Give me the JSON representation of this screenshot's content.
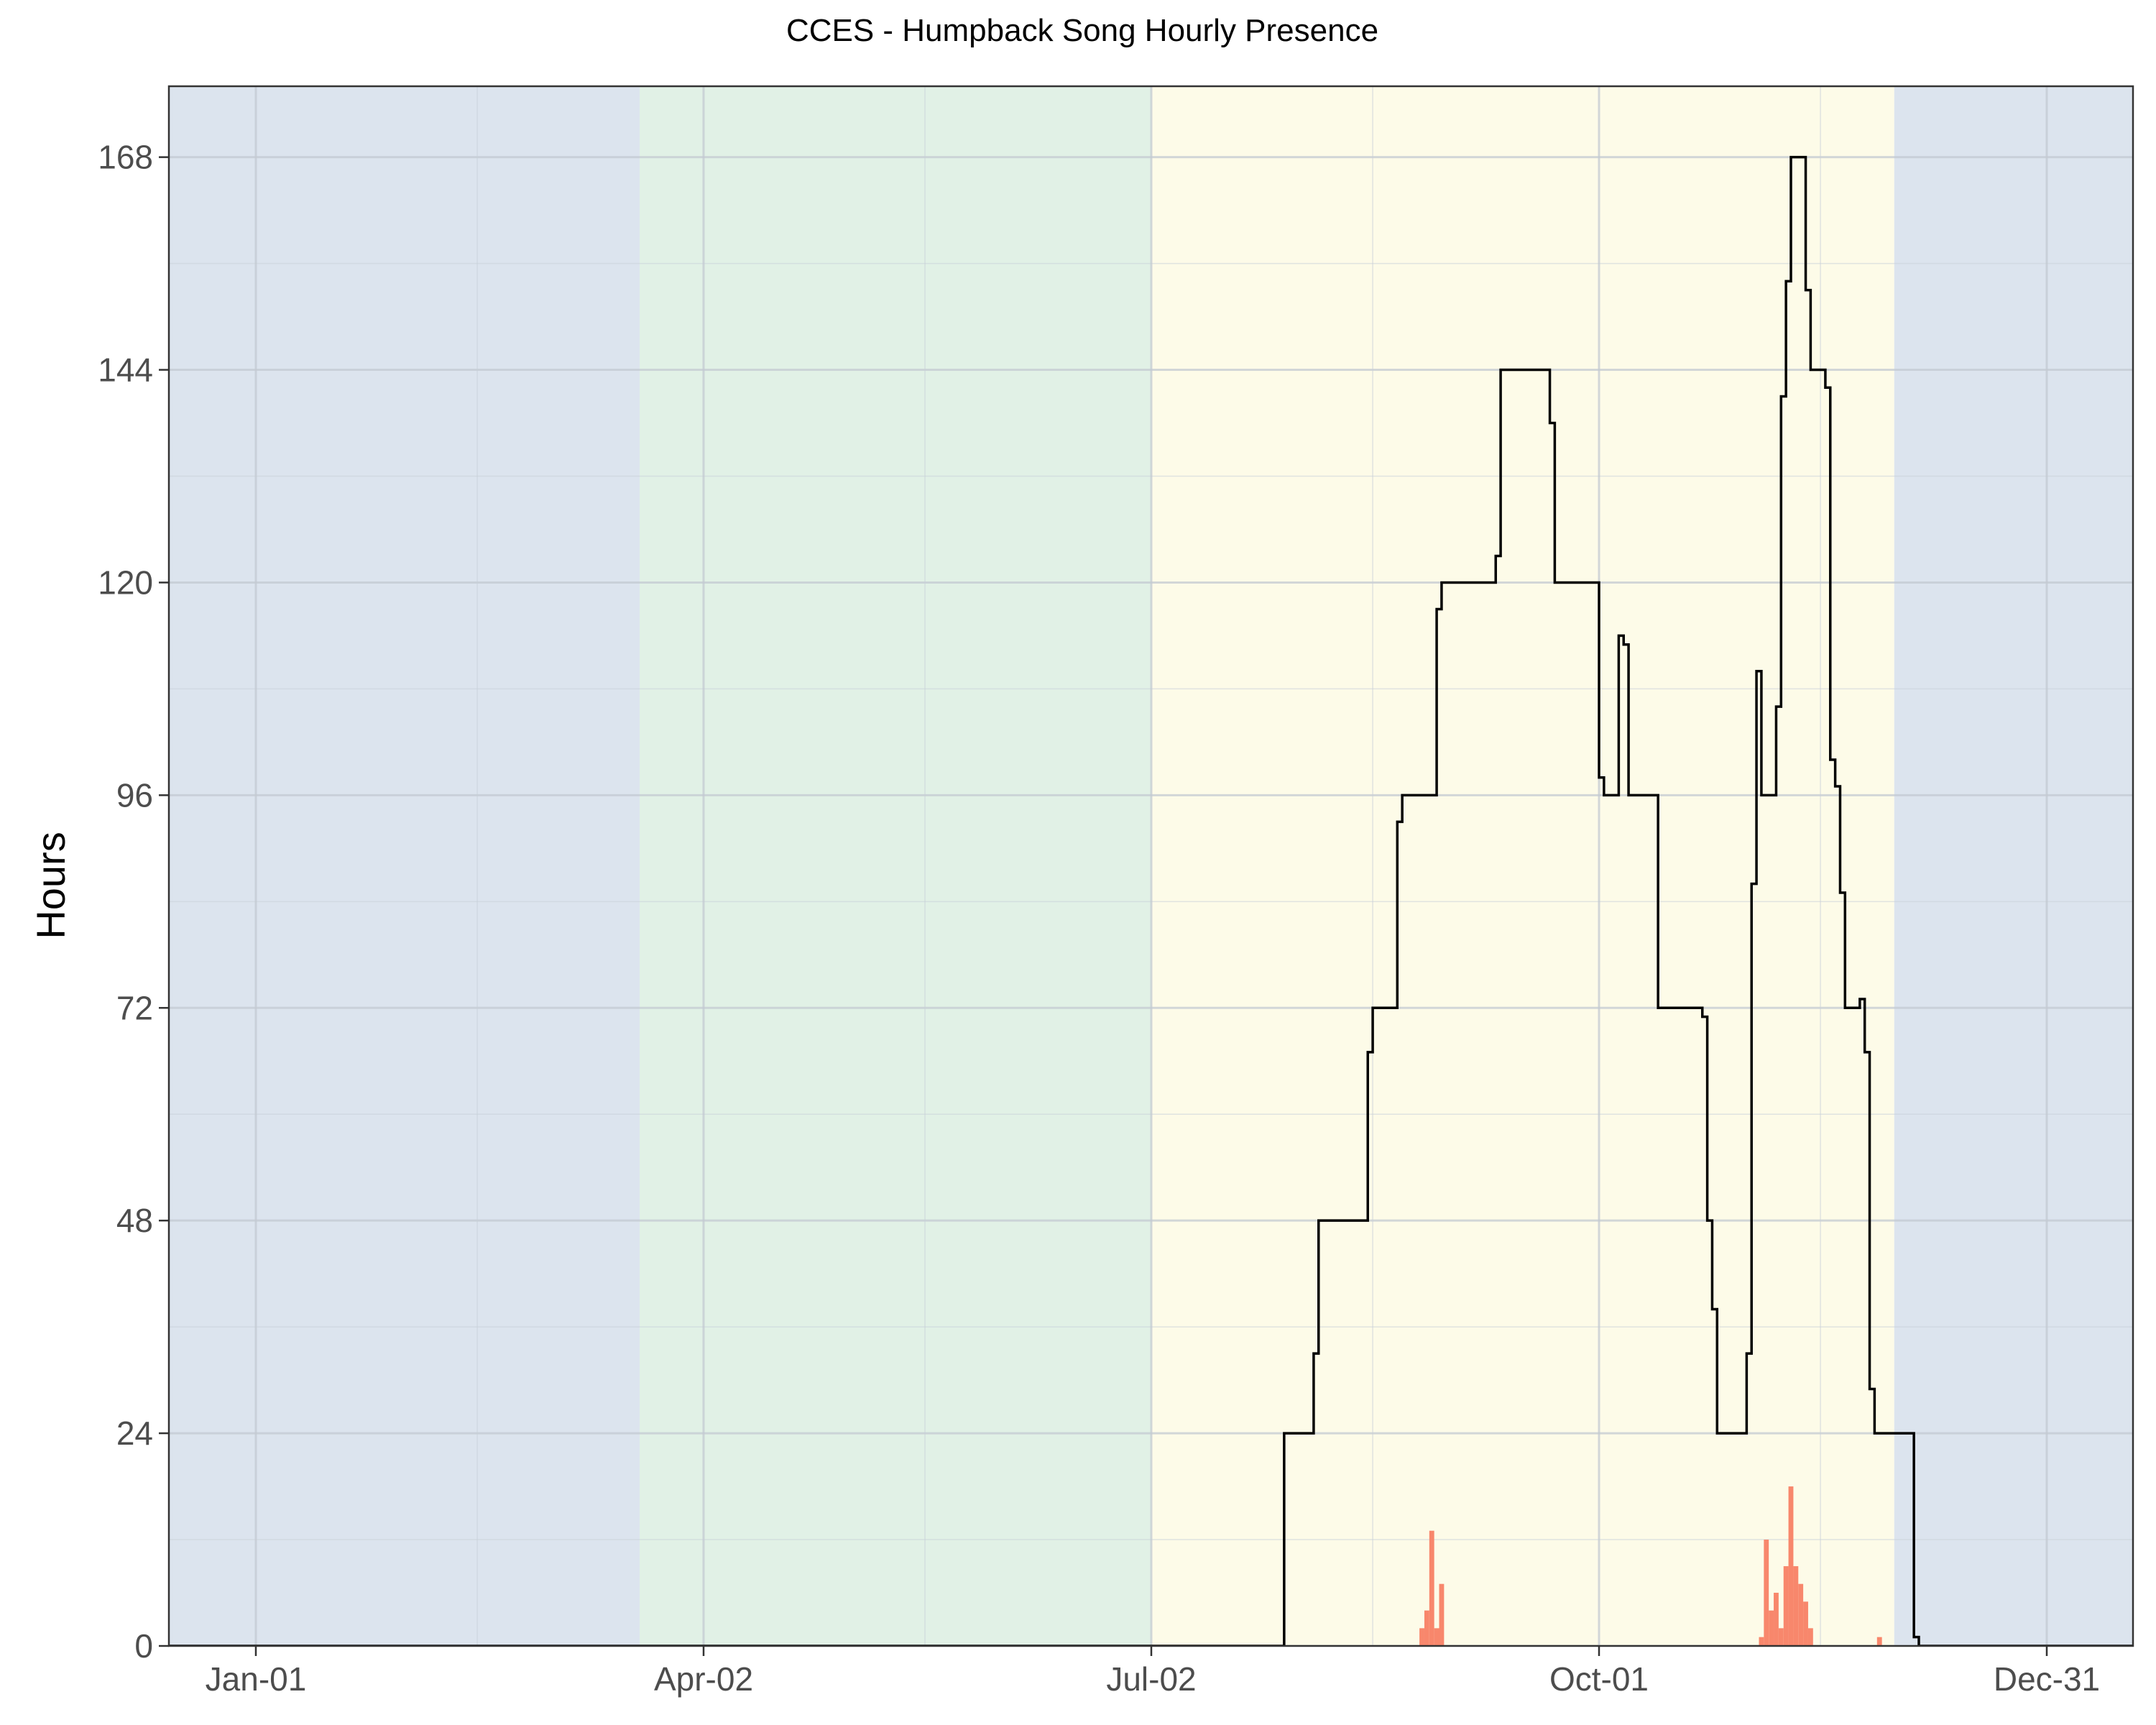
{
  "chart_data": {
    "type": "line",
    "title": "CCES - Humpback Song Hourly Presence",
    "xlabel": "",
    "ylabel": "Hours",
    "x_domain": [
      "2018-01-01",
      "2018-12-31"
    ],
    "x_ticks": [
      {
        "date": "2018-01-01",
        "label": "Jan-01"
      },
      {
        "date": "2018-04-02",
        "label": "Apr-02"
      },
      {
        "date": "2018-07-02",
        "label": "Jul-02"
      },
      {
        "date": "2018-10-01",
        "label": "Oct-01"
      },
      {
        "date": "2018-12-31",
        "label": "Dec-31"
      }
    ],
    "x_minor_ticks": [
      "2018-02-15",
      "2018-05-17",
      "2018-08-16",
      "2018-11-15"
    ],
    "ylim": [
      0,
      176
    ],
    "y_ticks": [
      0,
      24,
      48,
      72,
      96,
      120,
      144,
      168
    ],
    "y_minor_ticks": [
      12,
      36,
      60,
      84,
      108,
      132,
      156
    ],
    "grid": true,
    "seasons": [
      {
        "from": "2017-12-14",
        "to": "2018-03-20",
        "color": "#dce4ee"
      },
      {
        "from": "2018-03-20",
        "to": "2018-07-02",
        "color": "#e1f1e6"
      },
      {
        "from": "2018-07-02",
        "to": "2018-11-30",
        "color": "#fdfbe8"
      },
      {
        "from": "2018-11-30",
        "to": "2019-01-18",
        "color": "#dce4ee"
      }
    ],
    "line_color": "#000000",
    "bar_color": "#f8876c",
    "series": [
      {
        "kind": "step",
        "points": [
          [
            "2018-07-02",
            0
          ],
          [
            "2018-07-29",
            24
          ],
          [
            "2018-08-04",
            33
          ],
          [
            "2018-08-05",
            48
          ],
          [
            "2018-08-15",
            67
          ],
          [
            "2018-08-16",
            72
          ],
          [
            "2018-08-21",
            93
          ],
          [
            "2018-08-22",
            96
          ],
          [
            "2018-08-29",
            117
          ],
          [
            "2018-08-30",
            120
          ],
          [
            "2018-09-10",
            123
          ],
          [
            "2018-09-11",
            144
          ],
          [
            "2018-09-21",
            138
          ],
          [
            "2018-09-22",
            120
          ],
          [
            "2018-10-01",
            98
          ],
          [
            "2018-10-02",
            96
          ],
          [
            "2018-10-05",
            114
          ],
          [
            "2018-10-06",
            113
          ],
          [
            "2018-10-07",
            96
          ],
          [
            "2018-10-13",
            72
          ],
          [
            "2018-10-22",
            71
          ],
          [
            "2018-10-23",
            48
          ],
          [
            "2018-10-24",
            38
          ],
          [
            "2018-10-25",
            24
          ],
          [
            "2018-10-31",
            33
          ],
          [
            "2018-11-01",
            86
          ],
          [
            "2018-11-02",
            110
          ],
          [
            "2018-11-03",
            96
          ],
          [
            "2018-11-06",
            106
          ],
          [
            "2018-11-07",
            141
          ],
          [
            "2018-11-08",
            154
          ],
          [
            "2018-11-09",
            168
          ],
          [
            "2018-11-12",
            153
          ],
          [
            "2018-11-13",
            144
          ],
          [
            "2018-11-16",
            142
          ],
          [
            "2018-11-17",
            100
          ],
          [
            "2018-11-18",
            97
          ],
          [
            "2018-11-19",
            85
          ],
          [
            "2018-11-20",
            72
          ],
          [
            "2018-11-23",
            73
          ],
          [
            "2018-11-24",
            67
          ],
          [
            "2018-11-25",
            29
          ],
          [
            "2018-11-26",
            24
          ],
          [
            "2018-12-04",
            1
          ],
          [
            "2018-12-05",
            0
          ]
        ]
      },
      {
        "kind": "bar",
        "points": [
          [
            "2018-08-26",
            2
          ],
          [
            "2018-08-27",
            4
          ],
          [
            "2018-08-28",
            13
          ],
          [
            "2018-08-29",
            2
          ],
          [
            "2018-08-30",
            7
          ],
          [
            "2018-11-03",
            1
          ],
          [
            "2018-11-04",
            12
          ],
          [
            "2018-11-05",
            4
          ],
          [
            "2018-11-06",
            6
          ],
          [
            "2018-11-07",
            2
          ],
          [
            "2018-11-08",
            9
          ],
          [
            "2018-11-09",
            18
          ],
          [
            "2018-11-10",
            9
          ],
          [
            "2018-11-11",
            7
          ],
          [
            "2018-11-12",
            5
          ],
          [
            "2018-11-13",
            2
          ],
          [
            "2018-11-27",
            1
          ]
        ]
      }
    ]
  }
}
